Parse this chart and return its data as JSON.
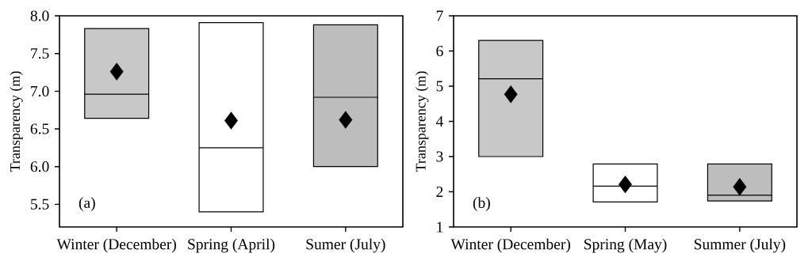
{
  "chart_data": [
    {
      "type": "box",
      "ylabel": "Transparency (m)",
      "categories": [
        "Winter (December)",
        "Spring (April)",
        "Sumer (July)"
      ],
      "boxes": [
        {
          "low": 6.64,
          "q1": 6.64,
          "median": 6.96,
          "q3": 7.83,
          "high": 7.83,
          "mean": 7.26
        },
        {
          "low": 5.4,
          "q1": 5.4,
          "median": 6.25,
          "q3": 7.91,
          "high": 7.91,
          "mean": 6.61
        },
        {
          "low": 6.0,
          "q1": 6.0,
          "median": 6.92,
          "q3": 7.88,
          "high": 7.88,
          "mean": 6.62
        }
      ],
      "colors": [
        "#c8c8c8",
        "#ffffff",
        "#bdbdbd"
      ],
      "ylim": [
        5.2,
        8.0
      ],
      "yticks": [
        {
          "value": 5.5,
          "label": "5.5"
        },
        {
          "value": 6.0,
          "label": "6.0"
        },
        {
          "value": 6.5,
          "label": "6.5"
        },
        {
          "value": 7.0,
          "label": "7.0"
        },
        {
          "value": 7.5,
          "label": "7.5"
        },
        {
          "value": 8.0,
          "label": "8.0"
        }
      ],
      "annotations": [
        "(a)"
      ]
    },
    {
      "type": "box",
      "ylabel": "Transparency (m)",
      "categories": [
        "Winter (December)",
        "Spring (May)",
        "Summer (July)"
      ],
      "boxes": [
        {
          "low": 3.0,
          "q1": 3.0,
          "median": 5.21,
          "q3": 6.3,
          "high": 6.3,
          "mean": 4.77
        },
        {
          "low": 1.71,
          "q1": 1.71,
          "median": 2.16,
          "q3": 2.79,
          "high": 2.79,
          "mean": 2.21
        },
        {
          "low": 1.74,
          "q1": 1.74,
          "median": 1.9,
          "q3": 2.79,
          "high": 2.79,
          "mean": 2.14
        }
      ],
      "colors": [
        "#c8c8c8",
        "#ffffff",
        "#bdbdbd"
      ],
      "ylim": [
        1,
        7
      ],
      "yticks": [
        1,
        2,
        3,
        4,
        5,
        6,
        7
      ],
      "annotations": [
        "(b)"
      ]
    }
  ]
}
